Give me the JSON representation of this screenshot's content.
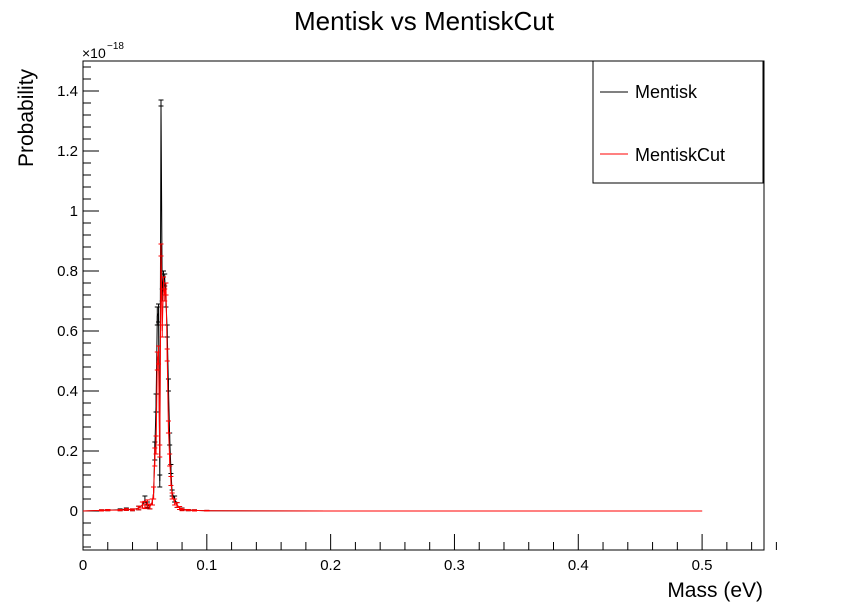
{
  "chart_data": {
    "type": "line",
    "title": "Mentisk vs MentiskCut",
    "xlabel": "Mass (eV)",
    "ylabel": "Probability",
    "y_exponent_base": "×10",
    "y_exponent_power": "−18",
    "xlim": [
      0,
      0.55
    ],
    "ylim": [
      -0.13,
      1.5
    ],
    "x_ticks": [
      0,
      0.1,
      0.2,
      0.3,
      0.4,
      0.5
    ],
    "x_tick_labels": [
      "0",
      "0.1",
      "0.2",
      "0.3",
      "0.4",
      "0.5"
    ],
    "y_ticks": [
      0,
      0.2,
      0.4,
      0.6,
      0.8,
      1.0,
      1.2,
      1.4
    ],
    "y_tick_labels": [
      "0",
      "0.2",
      "0.4",
      "0.6",
      "0.8",
      "1",
      "1.2",
      "1.4"
    ],
    "grid": false,
    "legend_position": "top-right",
    "series": [
      {
        "name": "Mentisk",
        "color": "#000000",
        "x": [
          0,
          0.015,
          0.02,
          0.03,
          0.035,
          0.04,
          0.045,
          0.048,
          0.05,
          0.052,
          0.054,
          0.056,
          0.057,
          0.058,
          0.059,
          0.06,
          0.061,
          0.062,
          0.063,
          0.064,
          0.065,
          0.066,
          0.067,
          0.068,
          0.069,
          0.07,
          0.071,
          0.072,
          0.074,
          0.076,
          0.078,
          0.08,
          0.085,
          0.09,
          0.1,
          0.2,
          0.3,
          0.4,
          0.5
        ],
        "y": [
          0,
          0.002,
          0.003,
          0.004,
          0.006,
          0.004,
          0.01,
          0.02,
          0.035,
          0.02,
          0.015,
          0.03,
          0.06,
          0.2,
          0.36,
          0.65,
          0.66,
          0.1,
          1.36,
          0.72,
          0.78,
          0.77,
          0.7,
          0.6,
          0.42,
          0.24,
          0.14,
          0.06,
          0.04,
          0.02,
          0.01,
          0.006,
          0.003,
          0.002,
          0.001,
          0,
          0,
          0,
          0
        ],
        "errors": [
          0,
          0.002,
          0.002,
          0.003,
          0.004,
          0.003,
          0.006,
          0.01,
          0.015,
          0.01,
          0.008,
          0.01,
          0.02,
          0.03,
          0.03,
          0.03,
          0.03,
          0.02,
          0.01,
          0.02,
          0.02,
          0.02,
          0.02,
          0.02,
          0.02,
          0.02,
          0.015,
          0.01,
          0.01,
          0.008,
          0.005,
          0.004,
          0.002,
          0.002,
          0.001,
          0,
          0,
          0,
          0
        ]
      },
      {
        "name": "MentiskCut",
        "color": "#ff0000",
        "x": [
          0,
          0.015,
          0.02,
          0.03,
          0.035,
          0.04,
          0.045,
          0.048,
          0.05,
          0.052,
          0.054,
          0.056,
          0.057,
          0.058,
          0.059,
          0.06,
          0.061,
          0.062,
          0.063,
          0.064,
          0.065,
          0.066,
          0.067,
          0.068,
          0.069,
          0.07,
          0.071,
          0.072,
          0.074,
          0.076,
          0.078,
          0.08,
          0.085,
          0.09,
          0.1,
          0.2,
          0.3,
          0.4,
          0.5
        ],
        "y": [
          0,
          0.002,
          0.003,
          0.003,
          0.005,
          0.004,
          0.01,
          0.02,
          0.02,
          0.025,
          0.015,
          0.03,
          0.06,
          0.18,
          0.22,
          0.5,
          0.52,
          0.2,
          0.87,
          0.6,
          0.76,
          0.72,
          0.74,
          0.52,
          0.28,
          0.17,
          0.1,
          0.05,
          0.03,
          0.02,
          0.01,
          0.005,
          0.003,
          0.002,
          0.001,
          0,
          0,
          0,
          0
        ],
        "errors": [
          0,
          0.002,
          0.002,
          0.002,
          0.003,
          0.003,
          0.006,
          0.01,
          0.012,
          0.012,
          0.008,
          0.01,
          0.02,
          0.03,
          0.03,
          0.03,
          0.03,
          0.02,
          0.02,
          0.02,
          0.02,
          0.02,
          0.02,
          0.02,
          0.02,
          0.02,
          0.015,
          0.01,
          0.01,
          0.008,
          0.005,
          0.004,
          0.002,
          0.002,
          0.001,
          0,
          0,
          0,
          0
        ]
      }
    ]
  }
}
